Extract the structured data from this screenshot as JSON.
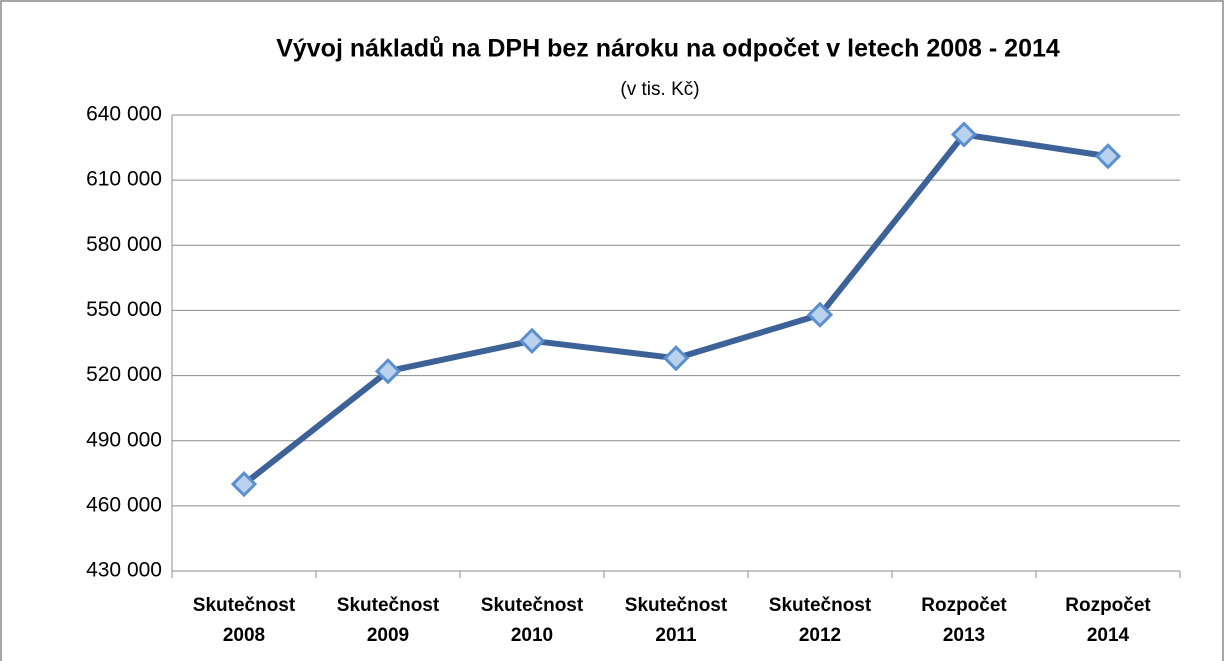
{
  "chart_data": {
    "type": "line",
    "title": "Vývoj nákladů na DPH bez nároku na odpočet v letech 2008 - 2014",
    "subtitle": "(v tis. Kč)",
    "categories": [
      "Skutečnost 2008",
      "Skutečnost 2009",
      "Skutečnost 2010",
      "Skutečnost 2011",
      "Skutečnost 2012",
      "Rozpočet 2013",
      "Rozpočet 2014"
    ],
    "series": [
      {
        "name": "DPH bez nároku na odpočet",
        "color": "#3c6297",
        "values": [
          470000,
          522000,
          536000,
          528000,
          548000,
          631000,
          621000
        ]
      }
    ],
    "ylim": [
      430000,
      640000
    ],
    "yticks": [
      {
        "value": 430000,
        "label": "430 000"
      },
      {
        "value": 460000,
        "label": "460 000"
      },
      {
        "value": 490000,
        "label": "490 000"
      },
      {
        "value": 520000,
        "label": "520 000"
      },
      {
        "value": 550000,
        "label": "550 000"
      },
      {
        "value": 580000,
        "label": "580 000"
      },
      {
        "value": 610000,
        "label": "610 000"
      },
      {
        "value": 640000,
        "label": "640 000"
      }
    ],
    "grid": true
  }
}
